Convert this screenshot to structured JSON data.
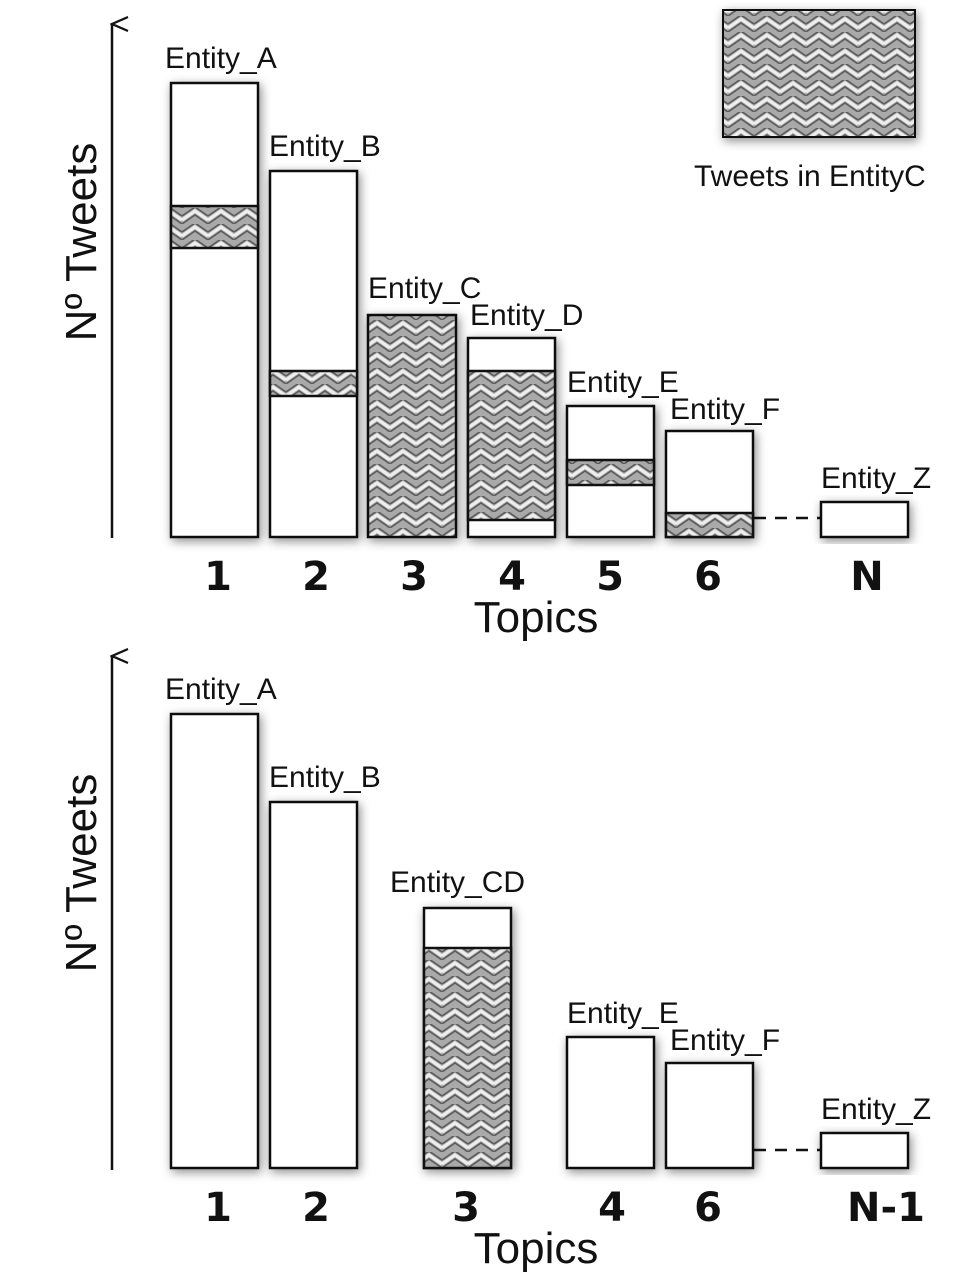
{
  "legend": {
    "label": "Tweets in EntityC"
  },
  "panels": [
    {
      "ylabel": "Nº Tweets",
      "xlabel": "Topics",
      "bars": [
        {
          "tick": "1",
          "label": "Entity_A"
        },
        {
          "tick": "2",
          "label": "Entity_B"
        },
        {
          "tick": "3",
          "label": "Entity_C"
        },
        {
          "tick": "4",
          "label": "Entity_D"
        },
        {
          "tick": "5",
          "label": "Entity_E"
        },
        {
          "tick": "6",
          "label": "Entity_F"
        },
        {
          "tick": "N",
          "label": "Entity_Z"
        }
      ]
    },
    {
      "ylabel": "Nº Tweets",
      "xlabel": "Topics",
      "bars": [
        {
          "tick": "1",
          "label": "Entity_A"
        },
        {
          "tick": "2",
          "label": "Entity_B"
        },
        {
          "tick": "3",
          "label": "Entity_CD"
        },
        {
          "tick": "4",
          "label": "Entity_E"
        },
        {
          "tick": "6",
          "label": "Entity_F"
        },
        {
          "tick": "N-1",
          "label": "Entity_Z"
        }
      ]
    }
  ]
}
